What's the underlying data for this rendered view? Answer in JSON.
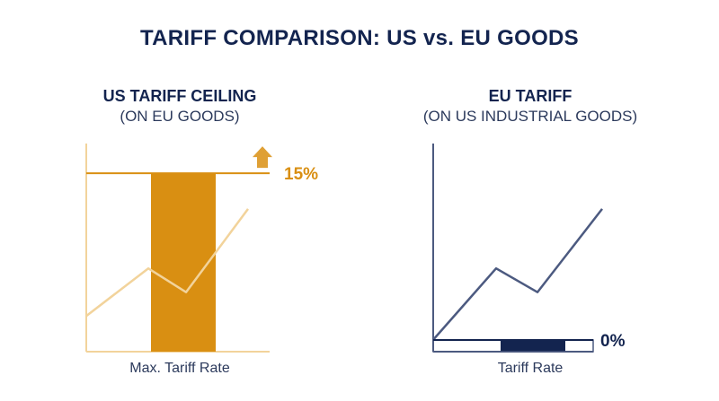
{
  "title": "TARIFF COMPARISON: US vs. EU GOODS",
  "colors": {
    "us": "#d98f12",
    "us_light": "#f2d39b",
    "eu": "#13244f",
    "eu_line": "#4c5a80"
  },
  "chart_data": [
    {
      "type": "bar",
      "title": "US TARIFF CEILING",
      "subtitle": "(ON EU GOODS)",
      "xlabel": "Max. Tariff Rate",
      "categories": [
        "Max. Tariff Rate"
      ],
      "values": [
        15
      ],
      "value_label": "15%",
      "unit": "%",
      "ylim": [
        0,
        17.5
      ],
      "trend": [
        3,
        7,
        5,
        12
      ],
      "trend_ylim": [
        0,
        17.5
      ],
      "icon": "up-arrow-icon",
      "color": "#d98f12"
    },
    {
      "type": "bar",
      "title": "EU TARIFF",
      "subtitle": "(ON US INDUSTRIAL GOODS)",
      "xlabel": "Tariff Rate",
      "categories": [
        "Tariff Rate"
      ],
      "values": [
        0
      ],
      "value_label": "0%",
      "unit": "%",
      "ylim": [
        0,
        17.5
      ],
      "trend": [
        1,
        7,
        5,
        12
      ],
      "trend_ylim": [
        0,
        17.5
      ],
      "color": "#13244f"
    }
  ]
}
